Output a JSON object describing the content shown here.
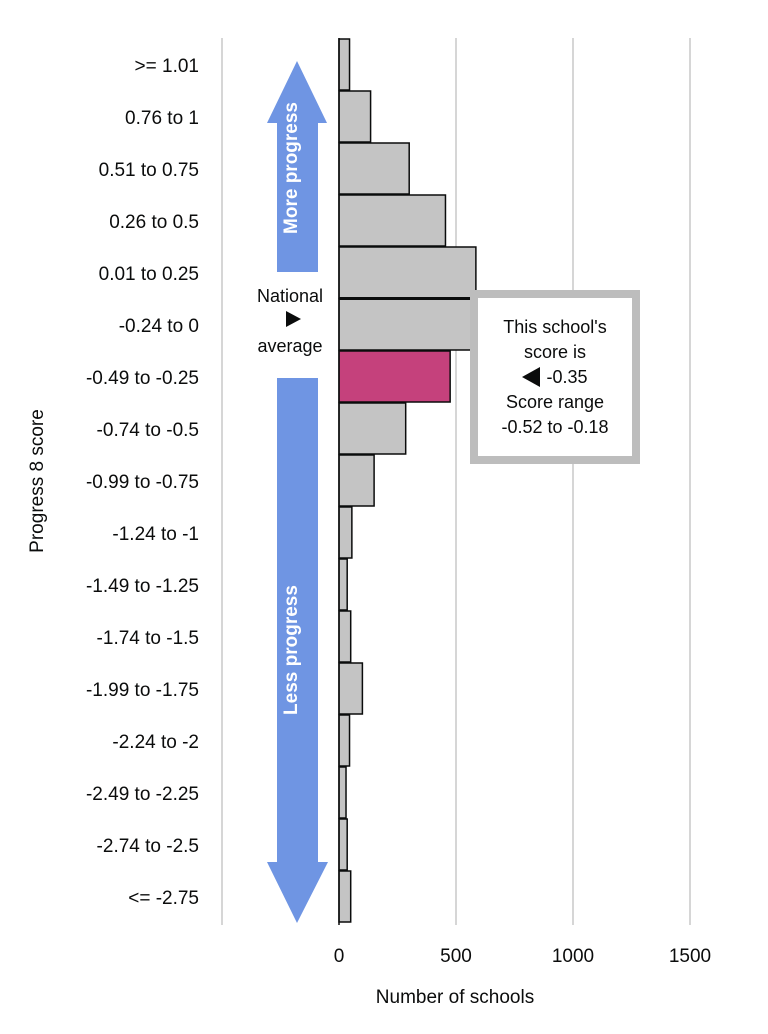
{
  "chart_data": {
    "type": "bar",
    "orientation": "horizontal",
    "categories": [
      ">= 1.01",
      "0.76 to 1",
      "0.51 to 0.75",
      "0.26 to 0.5",
      "0.01 to 0.25",
      "-0.24 to 0",
      "-0.49 to -0.25",
      "-0.74 to -0.5",
      "-0.99 to -0.75",
      "-1.24 to -1",
      "-1.49 to -1.25",
      "-1.74 to -1.5",
      "-1.99 to -1.75",
      "-2.24 to -2",
      "-2.49 to -2.25",
      "-2.74 to -2.5",
      "<= -2.75"
    ],
    "values": [
      45,
      135,
      300,
      455,
      585,
      570,
      475,
      285,
      150,
      55,
      35,
      50,
      100,
      45,
      30,
      35,
      50
    ],
    "highlight_index": 6,
    "xlabel": "Number of schools",
    "ylabel": "Progress 8 score",
    "xlim": [
      0,
      1500
    ],
    "xticks": [
      0,
      500,
      1000,
      1500
    ],
    "grid": "vertical",
    "colors": {
      "bar": "#c4c4c4",
      "highlight": "#c5417c",
      "arrow": "#6f95e3",
      "grid": "#c8c8c8",
      "box_border": "#bdbdbd"
    },
    "annotations": {
      "more_progress": "More progress",
      "less_progress": "Less progress",
      "national_average": {
        "line1": "National",
        "line2": "average"
      },
      "school": {
        "line1": "This school's",
        "line2": "score is",
        "score": "-0.35",
        "line4": "Score range",
        "line5": "-0.52 to -0.18"
      }
    }
  }
}
